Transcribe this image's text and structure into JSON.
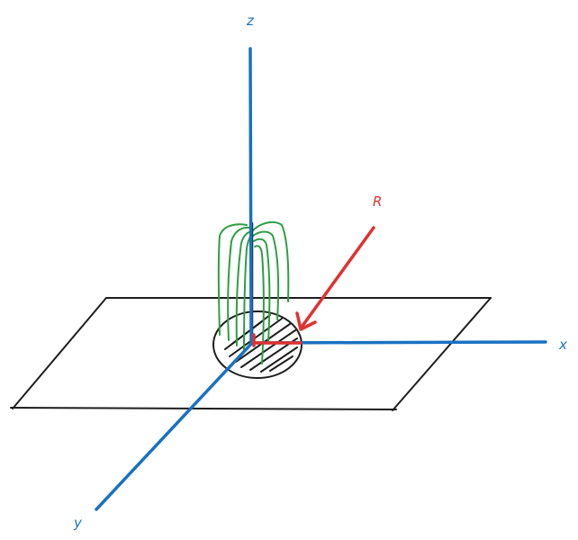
{
  "labels": {
    "z_axis": "z",
    "x_axis": "x",
    "y_axis": "y",
    "vector": "R"
  },
  "colors": {
    "axis": "#1971c2",
    "vector": "#e03131",
    "field_lines": "#2f9e44",
    "outline": "#1e1e1e"
  }
}
